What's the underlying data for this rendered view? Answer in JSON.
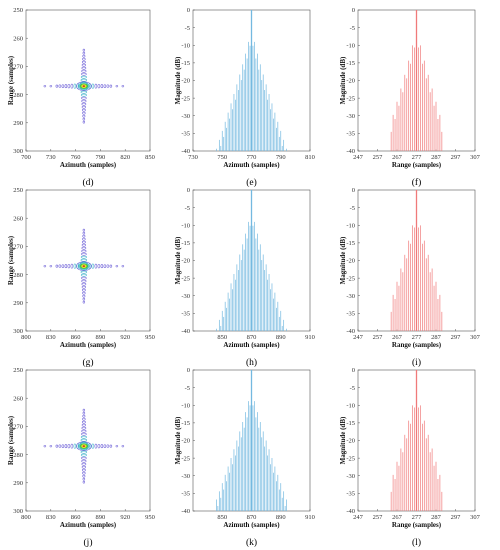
{
  "colors": {
    "azimuth_bars": "#74b9e0",
    "range_bars": "#f07a7a",
    "contour_outer": "#6f62d8",
    "contour_mid": "#38b0c8",
    "contour_core_green": "#44c34a",
    "contour_core_yellow": "#e5df2a",
    "contour_core_red": "#c8242a"
  },
  "chart_data": [
    {
      "type": "contour",
      "panel_label": "(d)",
      "xlabel": "Azimuth (samples)",
      "ylabel": "Range (samples)",
      "xlim": [
        700,
        850
      ],
      "ylim": [
        250,
        300
      ],
      "xticks": [
        "700",
        "730",
        "760",
        "790",
        "820",
        "850"
      ],
      "yticks": [
        "250",
        "260",
        "270",
        "280",
        "290",
        "300"
      ],
      "peak": {
        "x": 770,
        "y": 277
      }
    },
    {
      "type": "bar",
      "panel_label": "(e)",
      "xlabel": "Azimuth (samples)",
      "ylabel": "Magnitude (dB)",
      "xlim": [
        730,
        810
      ],
      "ylim": [
        -40,
        0
      ],
      "xticks": [
        "730",
        "750",
        "770",
        "790",
        "810"
      ],
      "yticks": [
        "0",
        "-5",
        "-10",
        "-15",
        "-20",
        "-25",
        "-30",
        "-35",
        "-40"
      ],
      "peak_x": 770,
      "half_width": 40,
      "decay_db_per_sample": 1.9,
      "color_key": "azimuth_bars"
    },
    {
      "type": "bar",
      "panel_label": "(f)",
      "xlabel": "Range (samples)",
      "ylabel": "Magnitude (dB)",
      "xlim": [
        247,
        307
      ],
      "ylim": [
        -40,
        0
      ],
      "xticks": [
        "247",
        "257",
        "267",
        "277",
        "287",
        "297",
        "307"
      ],
      "yticks": [
        "0",
        "-5",
        "-10",
        "-15",
        "-20",
        "-25",
        "-30",
        "-35",
        "-40"
      ],
      "peak_x": 277,
      "half_width": 13,
      "decay_db_per_sample": 2.8,
      "color_key": "range_bars"
    },
    {
      "type": "contour",
      "panel_label": "(g)",
      "xlabel": "Azimuth (samples)",
      "ylabel": "Range (samples)",
      "xlim": [
        800,
        950
      ],
      "ylim": [
        250,
        300
      ],
      "xticks": [
        "800",
        "830",
        "860",
        "890",
        "920",
        "950"
      ],
      "yticks": [
        "250",
        "260",
        "270",
        "280",
        "290",
        "300"
      ],
      "peak": {
        "x": 870,
        "y": 277
      }
    },
    {
      "type": "bar",
      "panel_label": "(h)",
      "xlabel": "Azimuth (samples)",
      "ylabel": "Magnitude (dB)",
      "xlim": [
        830,
        910
      ],
      "ylim": [
        -40,
        0
      ],
      "xticks": [
        "850",
        "870",
        "890",
        "910"
      ],
      "yticks": [
        "0",
        "-5",
        "-10",
        "-15",
        "-20",
        "-25",
        "-30",
        "-35",
        "-40"
      ],
      "peak_x": 870,
      "half_width": 40,
      "decay_db_per_sample": 1.9,
      "color_key": "azimuth_bars"
    },
    {
      "type": "bar",
      "panel_label": "(i)",
      "xlabel": "Range (samples)",
      "ylabel": "Magnitude (dB)",
      "xlim": [
        247,
        307
      ],
      "ylim": [
        -40,
        0
      ],
      "xticks": [
        "247",
        "257",
        "267",
        "277",
        "287",
        "297",
        "307"
      ],
      "yticks": [
        "0",
        "-5",
        "-10",
        "-15",
        "-20",
        "-25",
        "-30",
        "-35",
        "-40"
      ],
      "peak_x": 277,
      "half_width": 13,
      "decay_db_per_sample": 2.8,
      "color_key": "range_bars"
    },
    {
      "type": "contour",
      "panel_label": "(j)",
      "xlabel": "Azimuth (samples)",
      "ylabel": "Range (samples)",
      "xlim": [
        800,
        950
      ],
      "ylim": [
        250,
        300
      ],
      "xticks": [
        "800",
        "830",
        "860",
        "890",
        "920",
        "950"
      ],
      "yticks": [
        "250",
        "260",
        "270",
        "280",
        "290",
        "300"
      ],
      "peak": {
        "x": 870,
        "y": 277
      }
    },
    {
      "type": "bar",
      "panel_label": "(k)",
      "xlabel": "Azimuth (samples)",
      "ylabel": "Magnitude (dB)",
      "xlim": [
        830,
        910
      ],
      "ylim": [
        -40,
        0
      ],
      "xticks": [
        "850",
        "870",
        "890",
        "910"
      ],
      "yticks": [
        "0",
        "-5",
        "-10",
        "-15",
        "-20",
        "-25",
        "-30",
        "-35",
        "-40"
      ],
      "peak_x": 870,
      "half_width": 24,
      "decay_db_per_sample": 1.7,
      "color_key": "azimuth_bars"
    },
    {
      "type": "bar",
      "panel_label": "(l)",
      "xlabel": "Range (samples)",
      "ylabel": "Magnitude (dB)",
      "xlim": [
        247,
        307
      ],
      "ylim": [
        -40,
        0
      ],
      "xticks": [
        "247",
        "257",
        "267",
        "277",
        "287",
        "297",
        "307"
      ],
      "yticks": [
        "0",
        "-5",
        "-10",
        "-15",
        "-20",
        "-25",
        "-30",
        "-35",
        "-40"
      ],
      "peak_x": 277,
      "half_width": 13,
      "decay_db_per_sample": 2.8,
      "color_key": "range_bars"
    }
  ]
}
